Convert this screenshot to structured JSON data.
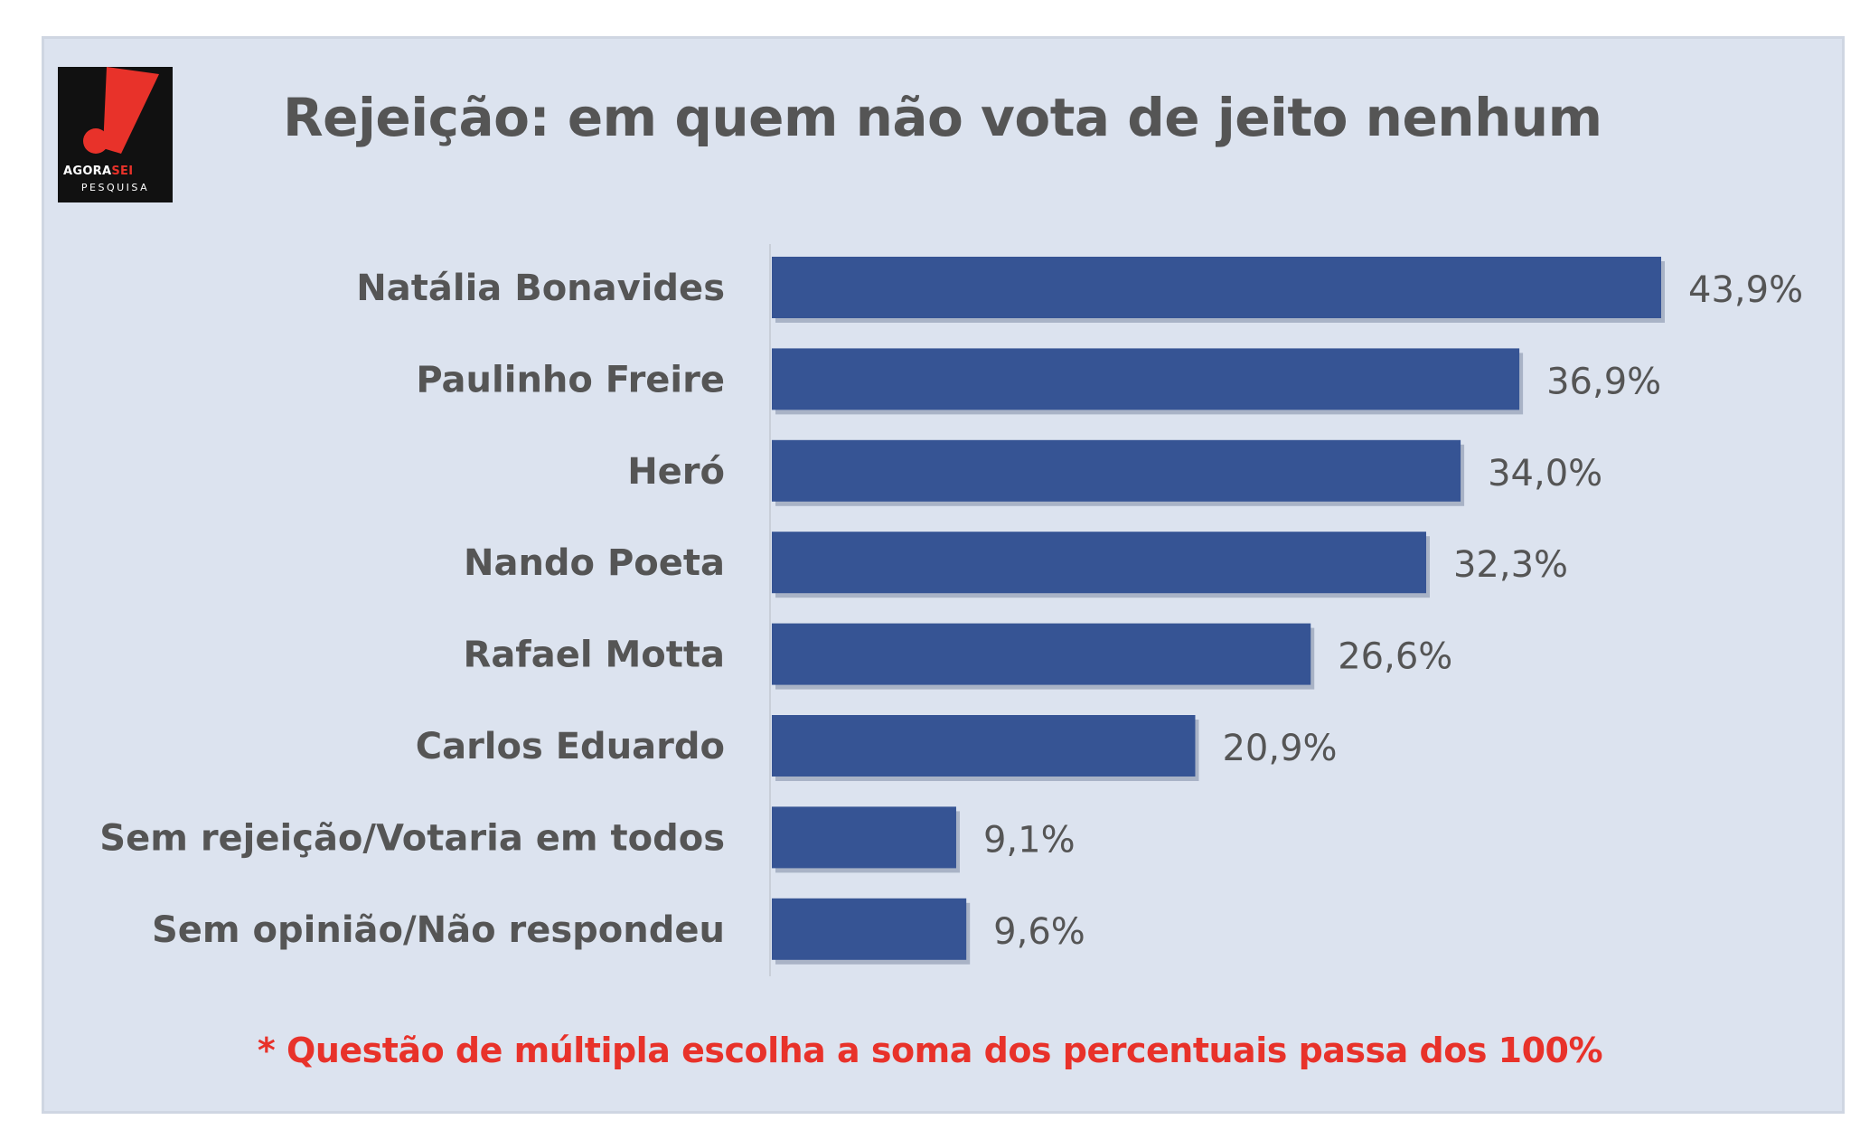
{
  "logo": {
    "word_black": "AGORA",
    "word_red": "SEI",
    "sub": "PESQUISA"
  },
  "chart_data": {
    "type": "bar",
    "orientation": "horizontal",
    "title": "Rejeição: em quem não vota de jeito nenhum",
    "categories": [
      "Natália Bonavides",
      "Paulinho Freire",
      "Heró",
      "Nando Poeta",
      "Rafael Motta",
      "Carlos Eduardo",
      "Sem rejeição/Votaria em todos",
      "Sem opinião/Não respondeu"
    ],
    "values": [
      43.9,
      36.9,
      34.0,
      32.3,
      26.6,
      20.9,
      9.1,
      9.6
    ],
    "value_labels": [
      "43,9%",
      "36,9%",
      "34,0%",
      "32,3%",
      "26,6%",
      "20,9%",
      "9,1%",
      "9,6%"
    ],
    "xlim": [
      0,
      43.9
    ],
    "grid": false,
    "legend": "none",
    "bar_color": "#365494",
    "footnote": "* Questão de múltipla escolha a soma dos percentuais passa dos 100%"
  }
}
